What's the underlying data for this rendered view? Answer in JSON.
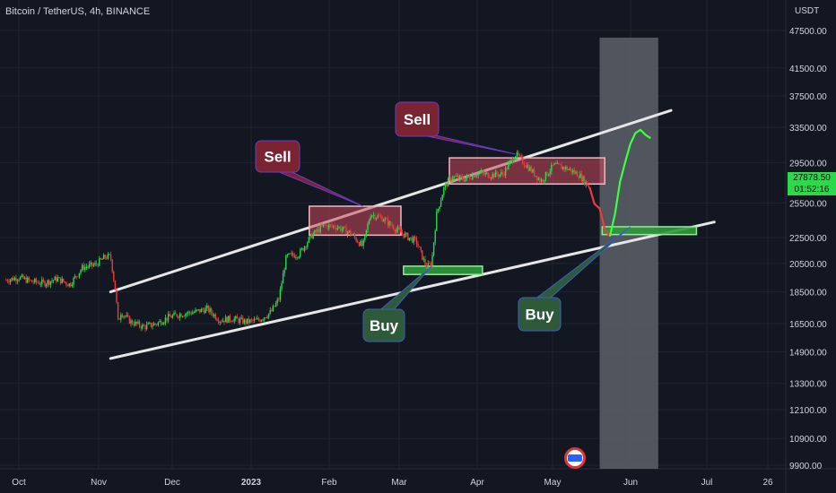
{
  "header": {
    "title": "Bitcoin / TetherUS, 4h, BINANCE",
    "currency": "USDT"
  },
  "price_tag": {
    "price": "27878.50",
    "countdown": "01:52:16",
    "color": "#2bd94a"
  },
  "annotations": {
    "sell_1": "Sell",
    "sell_2": "Sell",
    "buy_1": "Buy",
    "buy_2": "Buy"
  },
  "colors": {
    "background": "#131722",
    "grid": "#1f2430",
    "candles_up": "#2bd94a",
    "candles_down": "#ef3b3b",
    "channel_lines": "#e6e6e6",
    "sell_zone": "#c9485b",
    "sell_label_bg": "#7a2433",
    "buy_zone": "#2e9b3a",
    "buy_label_bg": "#2e5a3a",
    "projection_band": "#5d6069",
    "projection_path": "#3dff3d"
  },
  "chart_data": {
    "type": "line",
    "title": "Bitcoin / TetherUS, 4h, BINANCE",
    "xlabel": "",
    "ylabel": "USDT",
    "y_scale": "log",
    "ylim": [
      9500,
      48000
    ],
    "x_ticks": [
      "Oct",
      "Nov",
      "Dec",
      "2023",
      "Feb",
      "Mar",
      "Apr",
      "May",
      "Jun",
      "Jul",
      "26"
    ],
    "y_ticks": [
      47500,
      41500,
      37500,
      33500,
      29500,
      25500,
      22500,
      20500,
      18500,
      16500,
      14900,
      13300,
      12100,
      10900,
      9900
    ],
    "series": [
      {
        "role": "price",
        "x": [
          "Sep 26",
          "Oct 1",
          "Oct 6",
          "Oct 11",
          "Oct 16",
          "Oct 21",
          "Oct 26",
          "Oct 31",
          "Nov 4",
          "Nov 6",
          "Nov 8",
          "Nov 9",
          "Nov 10",
          "Nov 14",
          "Nov 19",
          "Nov 24",
          "Nov 29",
          "Dec 4",
          "Dec 9",
          "Dec 14",
          "Dec 19",
          "Dec 24",
          "Dec 29",
          "Jan 3",
          "Jan 8",
          "Jan 11",
          "Jan 14",
          "Jan 19",
          "Jan 24",
          "Jan 29",
          "Feb 3",
          "Feb 8",
          "Feb 13",
          "Feb 16",
          "Feb 21",
          "Feb 26",
          "Mar 3",
          "Mar 6",
          "Mar 10",
          "Mar 12",
          "Mar 14",
          "Mar 17",
          "Mar 20",
          "Mar 25",
          "Mar 30",
          "Apr 4",
          "Apr 9",
          "Apr 14",
          "Apr 19",
          "Apr 24",
          "Apr 29",
          "May 4",
          "May 9",
          "May 13"
        ],
        "values": [
          19300,
          19500,
          19200,
          19100,
          19400,
          19000,
          20200,
          20400,
          21000,
          21000,
          18500,
          16500,
          17200,
          16600,
          16300,
          16500,
          16900,
          17100,
          17200,
          17400,
          16700,
          16800,
          16600,
          16700,
          17200,
          18000,
          21000,
          21200,
          22700,
          23500,
          23400,
          22900,
          21800,
          24500,
          24100,
          23200,
          22500,
          22200,
          20200,
          20500,
          24500,
          27000,
          28000,
          27800,
          28400,
          28200,
          28300,
          30400,
          29000,
          27600,
          29200,
          28900,
          28200,
          27000
        ]
      },
      {
        "role": "projected_drop",
        "x": [
          "May 13",
          "May 15",
          "May 17",
          "May 19",
          "May 21"
        ],
        "values": [
          27000,
          25400,
          25000,
          23200,
          22600
        ]
      },
      {
        "role": "projected_rise",
        "x": [
          "May 21",
          "May 23",
          "May 25",
          "May 27",
          "May 29",
          "May 31",
          "Jun 2",
          "Jun 4",
          "Jun 6"
        ],
        "values": [
          22600,
          24500,
          27500,
          29500,
          31500,
          32800,
          33200,
          32600,
          32200
        ]
      }
    ],
    "channel": {
      "upper": {
        "x": [
          "Nov 6",
          "Jun 14"
        ],
        "values": [
          18500,
          35600
        ]
      },
      "lower": {
        "x": [
          "Nov 6",
          "Jul 1"
        ],
        "values": [
          14550,
          23800
        ]
      }
    },
    "zones": [
      {
        "type": "sell",
        "x_start": "Jan 23",
        "x_end": "Feb 28",
        "y_low": 22700,
        "y_high": 25200
      },
      {
        "type": "sell",
        "x_start": "Mar 19",
        "x_end": "May 19",
        "y_low": 27300,
        "y_high": 30000
      },
      {
        "type": "buy",
        "x_start": "Mar 1",
        "x_end": "Apr 1",
        "y_low": 19700,
        "y_high": 20300
      },
      {
        "type": "buy",
        "x_start": "May 18",
        "x_end": "Jun 24",
        "y_low": 22750,
        "y_high": 23400
      }
    ],
    "highlight_band": {
      "x_start": "May 17",
      "x_end": "Jun 9"
    },
    "grid": true,
    "legend": "none"
  }
}
